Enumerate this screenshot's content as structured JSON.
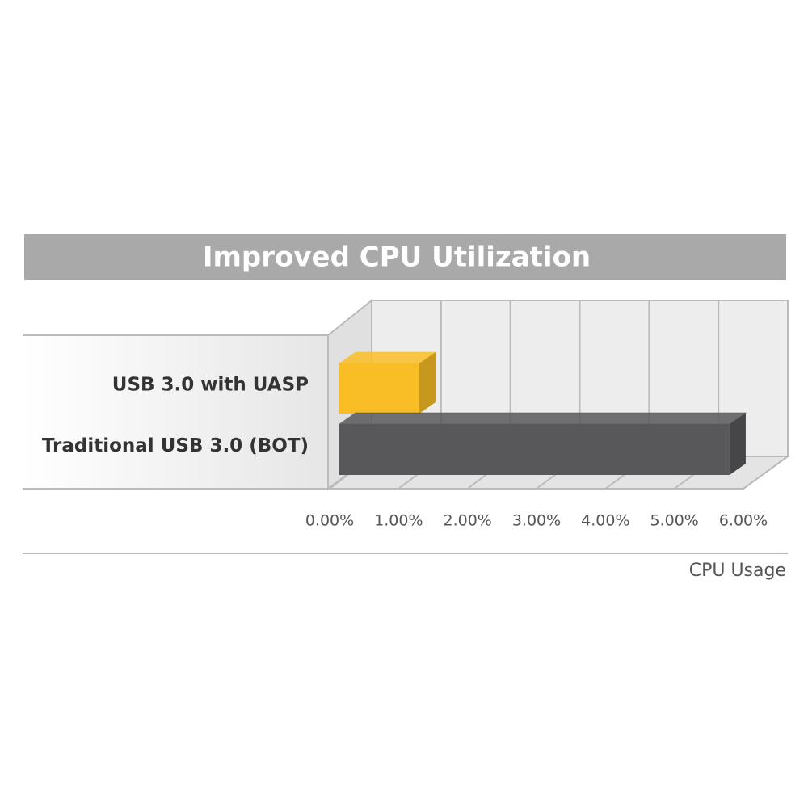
{
  "chart_data": {
    "type": "bar3d-horizontal",
    "title": "Improved CPU Utilization",
    "categories": [
      "USB 3.0 with UASP",
      "Traditional USB 3.0 (BOT)"
    ],
    "series": [
      {
        "name": null,
        "colors": [
          "#f9be26",
          "#58585a"
        ],
        "values": [
          1.3,
          5.8
        ]
      }
    ],
    "x_label": "CPU Usage",
    "xlim": [
      0,
      6
    ],
    "xticks": [
      {
        "value": 0,
        "label": "0.00%"
      },
      {
        "value": 1,
        "label": "1.00%"
      },
      {
        "value": 2,
        "label": "2.00%"
      },
      {
        "value": 3,
        "label": "3.00%"
      },
      {
        "value": 4,
        "label": "4.00%"
      },
      {
        "value": 5,
        "label": "5.00%"
      },
      {
        "value": 6,
        "label": "6.00%"
      }
    ],
    "grid": true
  }
}
